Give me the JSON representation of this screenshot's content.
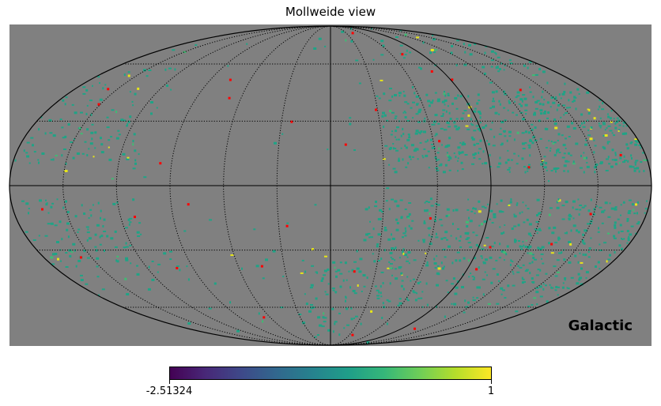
{
  "title": "Mollweide view",
  "coordinate_frame": "Galactic",
  "projection": "Mollweide",
  "colors": {
    "background": "#808080",
    "unseen": "#808080",
    "common_value": "#20a386",
    "high_value": "#e6e51a",
    "highlight": "#ff0000",
    "graticule": "#000000"
  },
  "colorbar": {
    "colormap": "viridis",
    "min_label": "-2.51324",
    "max_label": "1"
  },
  "graticule": {
    "meridian_spacing_deg": 30,
    "parallel_spacing_deg": 30,
    "style": "dotted"
  }
}
